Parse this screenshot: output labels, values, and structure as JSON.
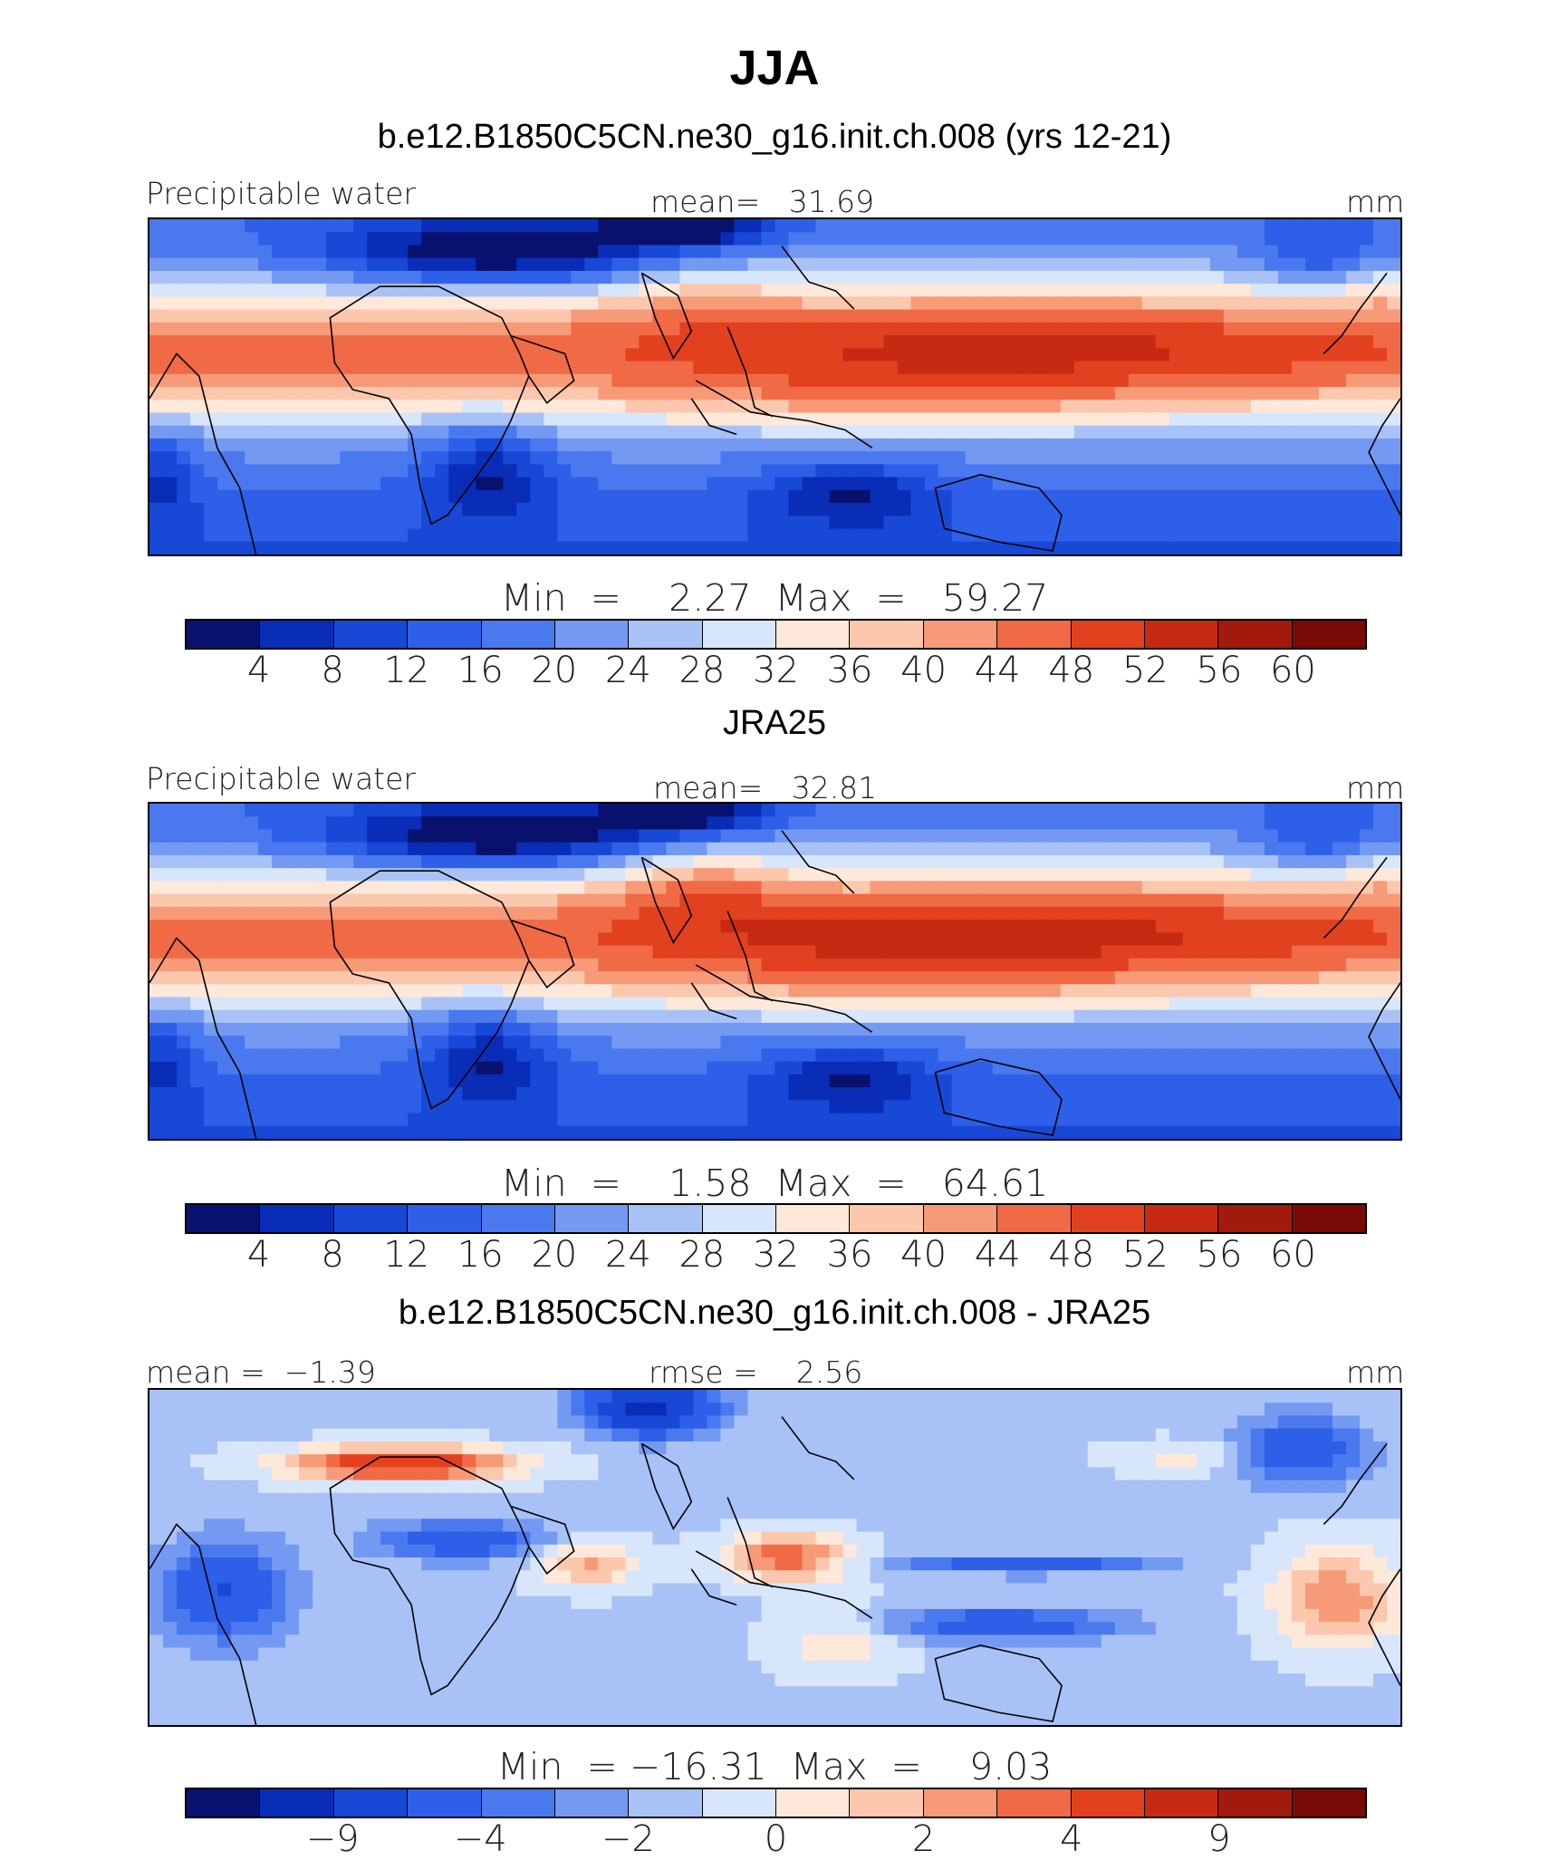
{
  "figure_title": "JJA",
  "colors": {
    "palette": [
      "#08126e",
      "#0a2db8",
      "#1748d6",
      "#2e5fe8",
      "#4a78ee",
      "#7399f2",
      "#a8c2f7",
      "#d8e6fb",
      "#fde8d9",
      "#fbc7ad",
      "#f79a78",
      "#f06a46",
      "#e2411f",
      "#c72a12",
      "#a11a0d",
      "#7a0a05"
    ],
    "coastline": "#000000"
  },
  "panels": [
    {
      "id": "model",
      "title": "b.e12.B1850C5CN.ne30_g16.init.ch.008 (yrs 12-21)",
      "left_label": "Precipitable water",
      "center_label": "mean=   31.69",
      "right_label": "mm",
      "minmax_label": "Min  =    2.27  Max  =   59.27",
      "colorbar_ticks": [
        "4",
        "8",
        "12",
        "16",
        "20",
        "24",
        "28",
        "32",
        "36",
        "40",
        "44",
        "48",
        "52",
        "56",
        "60"
      ]
    },
    {
      "id": "obs",
      "title": "JRA25",
      "left_label": "Precipitable water",
      "center_label": "mean=   32.81",
      "right_label": "mm",
      "minmax_label": "Min  =    1.58  Max  =   64.61",
      "colorbar_ticks": [
        "4",
        "8",
        "12",
        "16",
        "20",
        "24",
        "28",
        "32",
        "36",
        "40",
        "44",
        "48",
        "52",
        "56",
        "60"
      ]
    },
    {
      "id": "diff",
      "title": "b.e12.B1850C5CN.ne30_g16.init.ch.008 - JRA25",
      "left_label": "mean =  −1.39",
      "center_label": "rmse =    2.56",
      "right_label": "mm",
      "minmax_label": "Min  = −16.31  Max  =    9.03",
      "colorbar_ticks": [
        "−9",
        "−4",
        "−2",
        "0",
        "2",
        "4",
        "9"
      ]
    }
  ],
  "chart_data": [
    {
      "type": "heatmap",
      "title": "b.e12.B1850C5CN.ne30_g16.init.ch.008 (yrs 12-21)",
      "variable": "Precipitable water",
      "units": "mm",
      "season": "JJA",
      "mean": 31.69,
      "min": 2.27,
      "max": 59.27,
      "contour_levels": [
        4,
        8,
        12,
        16,
        20,
        24,
        28,
        32,
        36,
        40,
        44,
        48,
        52,
        56,
        60
      ],
      "lon_range": [
        -60,
        280
      ],
      "lat_range": [
        -38,
        38
      ]
    },
    {
      "type": "heatmap",
      "title": "JRA25",
      "variable": "Precipitable water",
      "units": "mm",
      "season": "JJA",
      "mean": 32.81,
      "min": 1.58,
      "max": 64.61,
      "contour_levels": [
        4,
        8,
        12,
        16,
        20,
        24,
        28,
        32,
        36,
        40,
        44,
        48,
        52,
        56,
        60
      ],
      "lon_range": [
        -60,
        280
      ],
      "lat_range": [
        -38,
        38
      ]
    },
    {
      "type": "heatmap",
      "title": "b.e12.B1850C5CN.ne30_g16.init.ch.008 - JRA25",
      "variable": "Precipitable water difference",
      "units": "mm",
      "season": "JJA",
      "mean": -1.39,
      "rmse": 2.56,
      "min": -16.31,
      "max": 9.03,
      "contour_levels": [
        -12,
        -9,
        -6,
        -4,
        -3,
        -2,
        -1,
        0,
        1,
        2,
        3,
        4,
        6,
        9,
        12
      ],
      "labeled_levels": [
        -9,
        -4,
        -2,
        0,
        2,
        4,
        9
      ],
      "lon_range": [
        -60,
        280
      ],
      "lat_range": [
        -38,
        38
      ]
    }
  ]
}
